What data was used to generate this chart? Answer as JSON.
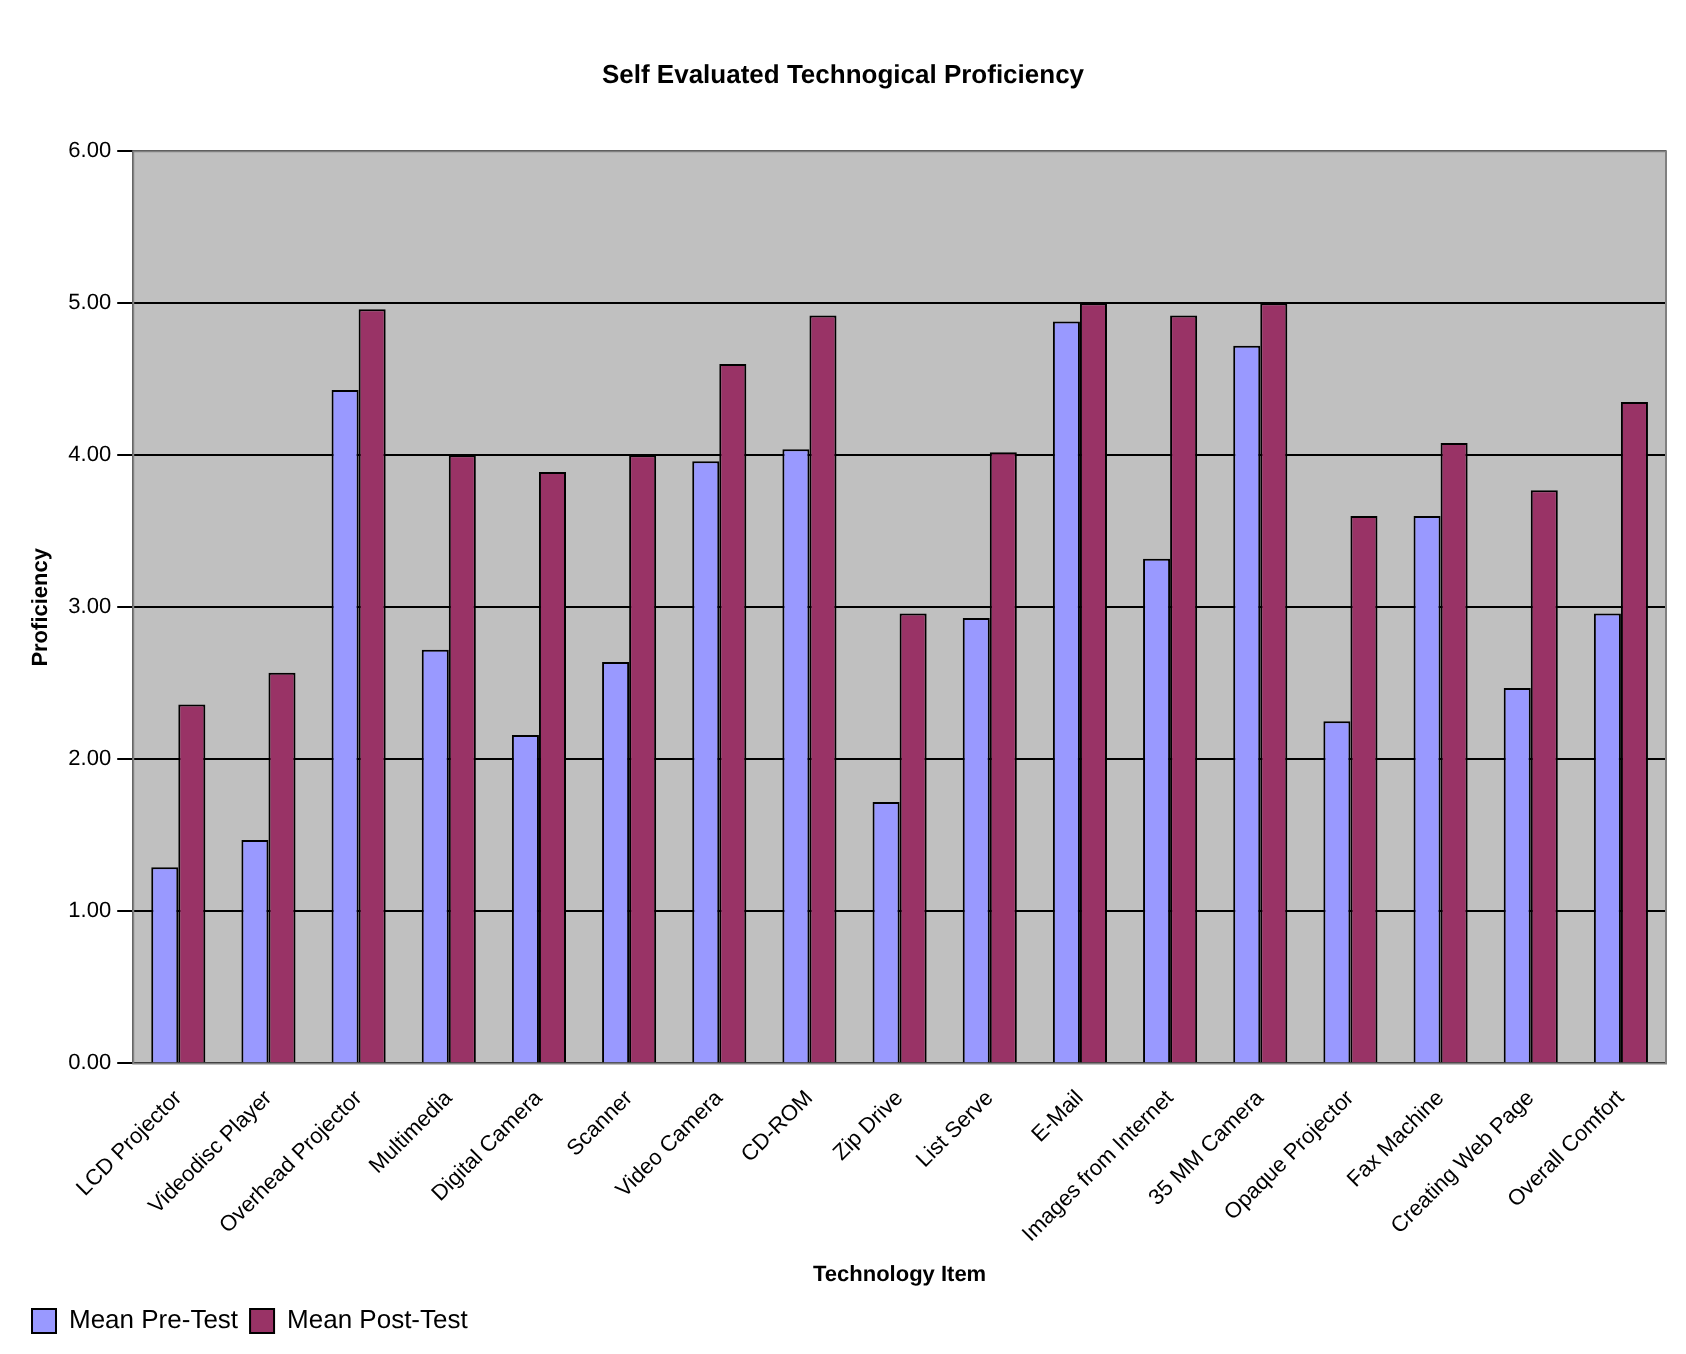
{
  "chart_data": {
    "type": "bar",
    "title": "Self Evaluated Technogical Proficiency",
    "xlabel": "Technology Item",
    "ylabel": "Proficiency",
    "categories": [
      "LCD Projector",
      "Videodisc Player",
      "Overhead Projector",
      "Multimedia",
      "Digital Camera",
      "Scanner",
      "Video Camera",
      "CD-ROM",
      "Zip Drive",
      "List Serve",
      "E-Mail",
      "Images from Internet",
      "35 MM Camera",
      "Opaque Projector",
      "Fax Machine",
      "Creating Web Page",
      "Overall Comfort"
    ],
    "series": [
      {
        "name": "Mean Pre-Test",
        "color": "#9999ff",
        "values": [
          1.29,
          1.47,
          4.43,
          2.72,
          2.16,
          2.64,
          3.96,
          4.04,
          1.72,
          2.93,
          4.88,
          3.32,
          4.72,
          2.25,
          3.6,
          2.47,
          2.96
        ]
      },
      {
        "name": "Mean Post-Test",
        "color": "#993366",
        "values": [
          2.36,
          2.57,
          4.96,
          4.0,
          3.89,
          4.0,
          4.6,
          4.92,
          2.96,
          4.02,
          5.0,
          4.92,
          5.0,
          3.6,
          4.08,
          3.77,
          4.35
        ]
      }
    ],
    "ylim": [
      0,
      6
    ],
    "yticks": [
      {
        "value": 0,
        "label": "0.00"
      },
      {
        "value": 1,
        "label": "1.00"
      },
      {
        "value": 2,
        "label": "2.00"
      },
      {
        "value": 3,
        "label": "3.00"
      },
      {
        "value": 4,
        "label": "4.00"
      },
      {
        "value": 5,
        "label": "5.00"
      },
      {
        "value": 6,
        "label": "6.00"
      }
    ],
    "grid": "y",
    "legend": "bottom left"
  }
}
